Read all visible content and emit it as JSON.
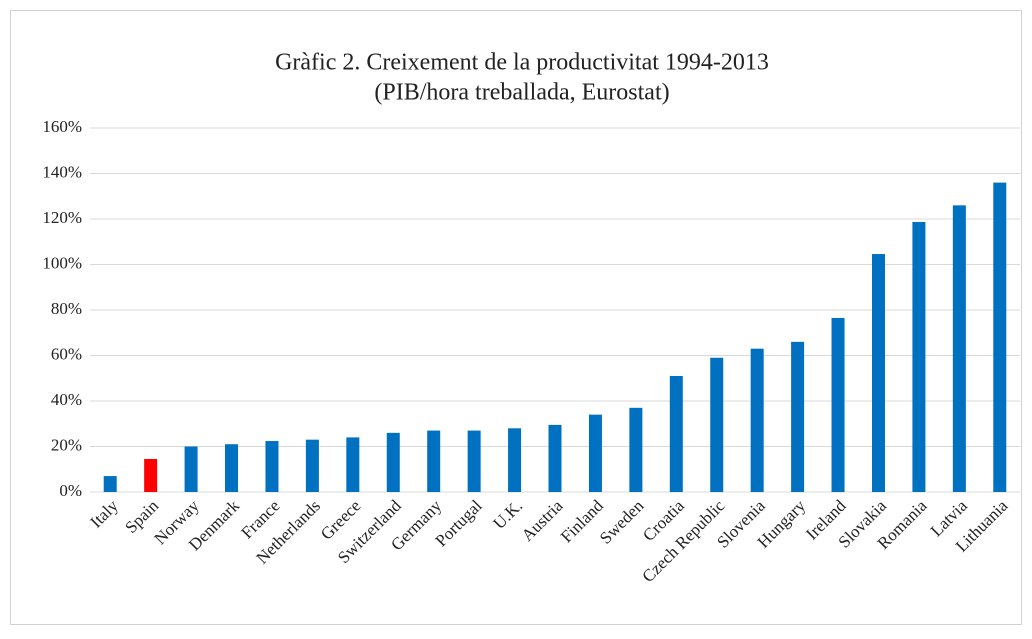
{
  "chart_data": {
    "type": "bar",
    "title": "Gràfic 2. Creixement de la productivitat 1994-2013",
    "subtitle": "(PIB/hora treballada, Eurostat)",
    "categories": [
      "Italy",
      "Spain",
      "Norway",
      "Denmark",
      "France",
      "Netherlands",
      "Greece",
      "Switzerland",
      "Germany",
      "Portugal",
      "U.K.",
      "Austria",
      "Finland",
      "Sweden",
      "Croatia",
      "Czech Republic",
      "Slovenia",
      "Hungary",
      "Ireland",
      "Slovakia",
      "Romania",
      "Latvia",
      "Lithuania"
    ],
    "values": [
      7,
      14.5,
      20,
      21,
      22.4,
      23,
      24,
      26,
      27,
      27,
      28,
      29.5,
      34,
      37,
      51,
      59,
      63,
      66,
      76.5,
      104.6,
      118.7,
      126,
      136
    ],
    "colors": [
      "#0070c0",
      "#ff0000",
      "#0070c0",
      "#0070c0",
      "#0070c0",
      "#0070c0",
      "#0070c0",
      "#0070c0",
      "#0070c0",
      "#0070c0",
      "#0070c0",
      "#0070c0",
      "#0070c0",
      "#0070c0",
      "#0070c0",
      "#0070c0",
      "#0070c0",
      "#0070c0",
      "#0070c0",
      "#0070c0",
      "#0070c0",
      "#0070c0",
      "#0070c0"
    ],
    "ylim": [
      0,
      160
    ],
    "yticks": [
      {
        "value": 0,
        "label": "0%"
      },
      {
        "value": 20,
        "label": "20%"
      },
      {
        "value": 40,
        "label": "40%"
      },
      {
        "value": 60,
        "label": "60%"
      },
      {
        "value": 80,
        "label": "80%"
      },
      {
        "value": 100,
        "label": "100%"
      },
      {
        "value": 120,
        "label": "120%"
      },
      {
        "value": 140,
        "label": "140%"
      },
      {
        "value": 160,
        "label": "160%"
      }
    ],
    "grid": true
  }
}
